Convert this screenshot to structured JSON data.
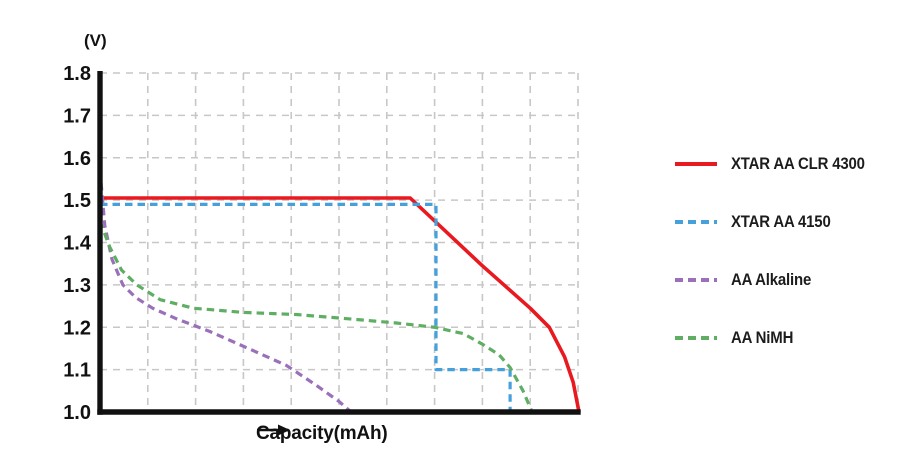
{
  "chart_data": {
    "type": "line",
    "title": "",
    "ylabel": "(V)",
    "xlabel": "Capacity(mAh)",
    "xlabel_arrow": "right-arrow",
    "ylim": [
      1.0,
      1.8
    ],
    "y_ticks": [
      "1.8",
      "1.7",
      "1.6",
      "1.5",
      "1.4",
      "1.3",
      "1.2",
      "1.1",
      "1.0"
    ],
    "x_tick_labels": [],
    "x_range_units": [
      0,
      10
    ],
    "x_gridlines": 10,
    "grid": true,
    "legend_position": "right",
    "axis_color": "#111111",
    "grid_color": "#c7c7c7",
    "series": [
      {
        "name": "XTAR AA CLR 4300",
        "color": "#e8191f",
        "dash": "solid",
        "points": [
          [
            0,
            1.505
          ],
          [
            6.49,
            1.505
          ],
          [
            8.0,
            1.345
          ],
          [
            9.0,
            1.245
          ],
          [
            9.4,
            1.2
          ],
          [
            9.72,
            1.13
          ],
          [
            9.9,
            1.07
          ],
          [
            10.02,
            1.0
          ]
        ]
      },
      {
        "name": "XTAR AA 4150",
        "color": "#45a0dc",
        "dash": "dashed",
        "points": [
          [
            0,
            1.49
          ],
          [
            7.03,
            1.49
          ],
          [
            7.03,
            1.1
          ],
          [
            8.58,
            1.1
          ],
          [
            8.58,
            1.0
          ]
        ]
      },
      {
        "name": "AA Alkaline",
        "color": "#9b70ba",
        "dash": "dashed",
        "points": [
          [
            0,
            1.57
          ],
          [
            0.1,
            1.44
          ],
          [
            0.25,
            1.36
          ],
          [
            0.48,
            1.3
          ],
          [
            0.75,
            1.27
          ],
          [
            1.1,
            1.245
          ],
          [
            1.6,
            1.22
          ],
          [
            2.3,
            1.19
          ],
          [
            3.1,
            1.15
          ],
          [
            3.9,
            1.11
          ],
          [
            4.5,
            1.065
          ],
          [
            5.0,
            1.025
          ],
          [
            5.25,
            1.0
          ]
        ]
      },
      {
        "name": "AA NiMH",
        "color": "#5fae63",
        "dash": "dashed",
        "points": [
          [
            0,
            1.45
          ],
          [
            0.2,
            1.39
          ],
          [
            0.45,
            1.335
          ],
          [
            0.77,
            1.3
          ],
          [
            1.26,
            1.265
          ],
          [
            1.95,
            1.245
          ],
          [
            3.0,
            1.235
          ],
          [
            4.1,
            1.23
          ],
          [
            5.2,
            1.22
          ],
          [
            6.2,
            1.21
          ],
          [
            7.0,
            1.2
          ],
          [
            7.6,
            1.185
          ],
          [
            8.0,
            1.16
          ],
          [
            8.35,
            1.135
          ],
          [
            8.58,
            1.105
          ],
          [
            8.85,
            1.05
          ],
          [
            9.04,
            1.0
          ]
        ]
      }
    ]
  }
}
